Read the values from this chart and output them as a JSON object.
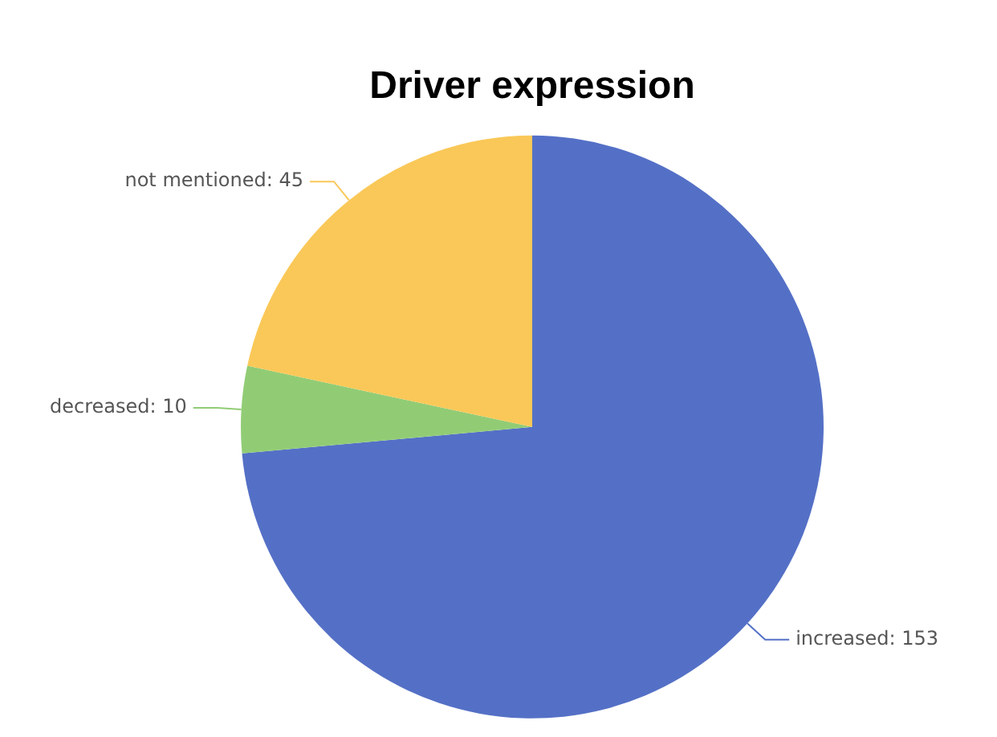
{
  "chart_data": {
    "type": "pie",
    "title": "Driver expression",
    "categories": [
      "increased",
      "decreased",
      "not mentioned"
    ],
    "values": [
      153,
      10,
      45
    ],
    "value_labels": [
      ": 153",
      ": 10",
      ": 45"
    ],
    "colors": [
      "#5470c6",
      "#91cc75",
      "#fac858"
    ],
    "legend": false
  }
}
